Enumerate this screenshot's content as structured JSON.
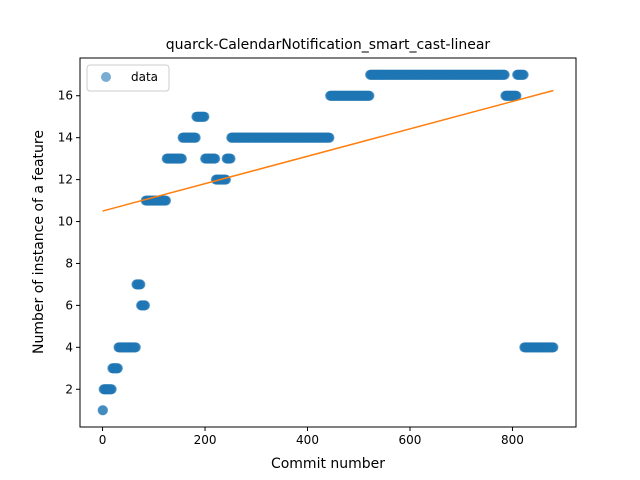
{
  "chart_data": {
    "type": "scatter",
    "title": "quarck-CalendarNotification_smart_cast-linear",
    "xlabel": "Commit number",
    "ylabel": "Number of instance of a feature",
    "xlim": [
      -44,
      924
    ],
    "ylim": [
      0.2,
      17.8
    ],
    "xticks": [
      0,
      200,
      400,
      600,
      800
    ],
    "yticks": [
      2,
      4,
      6,
      8,
      10,
      12,
      14,
      16
    ],
    "legend": {
      "position": "upper-left",
      "entries": [
        "data"
      ]
    },
    "colors": {
      "data": "#1f77b4",
      "fit": "#ff7f0e"
    },
    "grid": false,
    "segments": [
      {
        "x": [
          0,
          1
        ],
        "y": 1
      },
      {
        "x": [
          2,
          18
        ],
        "y": 2
      },
      {
        "x": [
          19,
          30
        ],
        "y": 3
      },
      {
        "x": [
          31,
          65
        ],
        "y": 4
      },
      {
        "x": [
          66,
          74
        ],
        "y": 7
      },
      {
        "x": [
          75,
          83
        ],
        "y": 6
      },
      {
        "x": [
          84,
          124
        ],
        "y": 11
      },
      {
        "x": [
          125,
          155
        ],
        "y": 13
      },
      {
        "x": [
          156,
          182
        ],
        "y": 14
      },
      {
        "x": [
          183,
          199
        ],
        "y": 15
      },
      {
        "x": [
          200,
          220
        ],
        "y": 13
      },
      {
        "x": [
          221,
          241
        ],
        "y": 12
      },
      {
        "x": [
          242,
          250
        ],
        "y": 13
      },
      {
        "x": [
          251,
          443
        ],
        "y": 14
      },
      {
        "x": [
          444,
          521
        ],
        "y": 16
      },
      {
        "x": [
          522,
          785
        ],
        "y": 17
      },
      {
        "x": [
          786,
          808
        ],
        "y": 16
      },
      {
        "x": [
          809,
          822
        ],
        "y": 17
      },
      {
        "x": [
          823,
          880
        ],
        "y": 4
      }
    ],
    "fit_line": {
      "x": [
        0,
        880
      ],
      "y": [
        10.5,
        16.25
      ]
    }
  }
}
